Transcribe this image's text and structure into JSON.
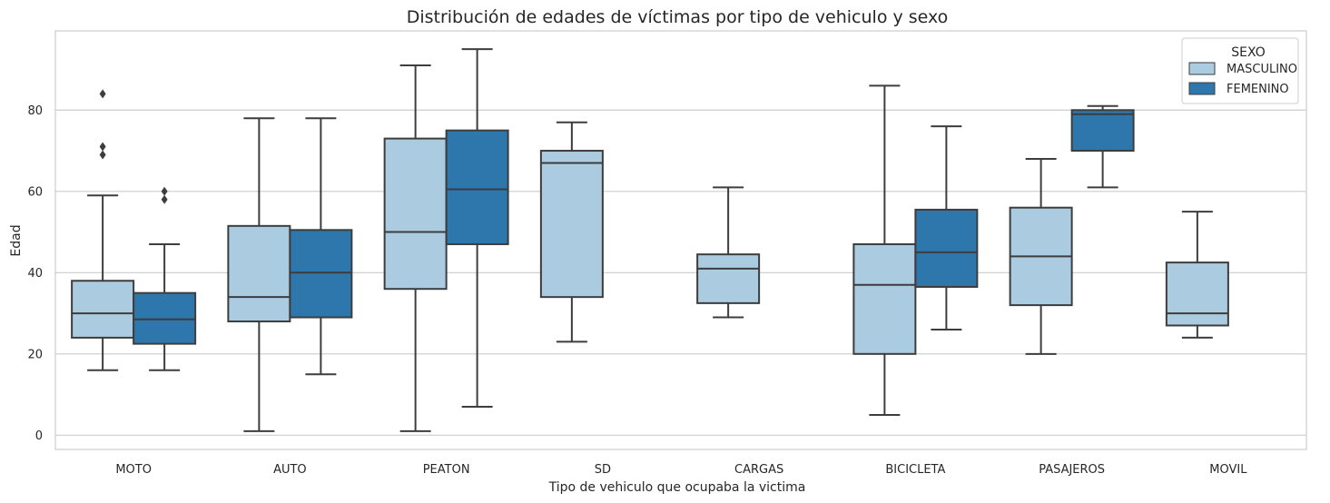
{
  "chart_data": {
    "type": "boxplot",
    "title": "Distribución de edades de víctimas por tipo de vehiculo y sexo",
    "xlabel": "Tipo de vehiculo que ocupaba la victima",
    "ylabel": "Edad",
    "ylim": [
      -3.5,
      99.5
    ],
    "yticks": [
      0,
      20,
      40,
      60,
      80
    ],
    "grid": true,
    "legend": {
      "title": "SEXO",
      "placement": "top-right"
    },
    "categories": [
      "MOTO",
      "AUTO",
      "PEATON",
      "SD",
      "CARGAS",
      "BICICLETA",
      "PASAJEROS",
      "MOVIL"
    ],
    "series": [
      {
        "name": "MASCULINO",
        "color": "#abcbe0",
        "boxes": [
          {
            "min": 16,
            "q1": 24,
            "median": 30,
            "q3": 38,
            "max": 59,
            "outliers": [
              69,
              71,
              84
            ]
          },
          {
            "min": 1,
            "q1": 28,
            "median": 34,
            "q3": 51.5,
            "max": 78,
            "outliers": []
          },
          {
            "min": 1,
            "q1": 36,
            "median": 50,
            "q3": 73,
            "max": 91,
            "outliers": []
          },
          {
            "min": 23,
            "q1": 34,
            "median": 67,
            "q3": 70,
            "max": 77,
            "outliers": []
          },
          {
            "min": 29,
            "q1": 32.5,
            "median": 41,
            "q3": 44.5,
            "max": 61,
            "outliers": []
          },
          {
            "min": 5,
            "q1": 20,
            "median": 37,
            "q3": 47,
            "max": 86,
            "outliers": []
          },
          {
            "min": 20,
            "q1": 32,
            "median": 44,
            "q3": 56,
            "max": 68,
            "outliers": []
          },
          {
            "min": 24,
            "q1": 27,
            "median": 30,
            "q3": 42.5,
            "max": 55,
            "outliers": []
          }
        ]
      },
      {
        "name": "FEMENINO",
        "color": "#2e77ad",
        "boxes": [
          {
            "min": 16,
            "q1": 22.5,
            "median": 28.5,
            "q3": 35,
            "max": 47,
            "outliers": [
              58,
              60
            ]
          },
          {
            "min": 15,
            "q1": 29,
            "median": 40,
            "q3": 50.5,
            "max": 78,
            "outliers": []
          },
          {
            "min": 7,
            "q1": 47,
            "median": 60.5,
            "q3": 75,
            "max": 95,
            "outliers": []
          },
          null,
          null,
          {
            "min": 26,
            "q1": 36.5,
            "median": 45,
            "q3": 55.5,
            "max": 76,
            "outliers": []
          },
          {
            "min": 61,
            "q1": 70,
            "median": 79,
            "q3": 80,
            "max": 81,
            "outliers": []
          },
          null
        ]
      }
    ]
  }
}
